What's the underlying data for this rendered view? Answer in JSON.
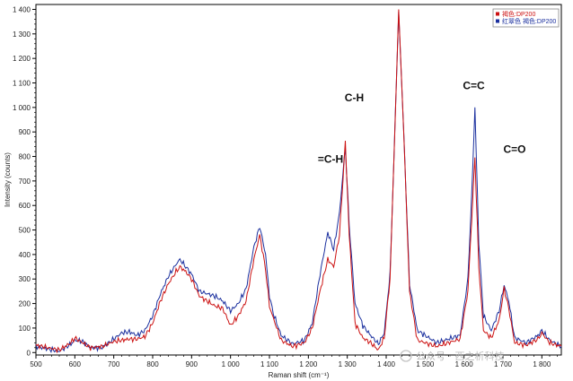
{
  "chart_data": {
    "type": "line",
    "xlabel": "Raman shift (cm⁻¹)",
    "ylabel": "Intensity (counts)",
    "xlim": [
      500,
      1850
    ],
    "ylim": [
      -10,
      1420
    ],
    "x_ticks": [
      500,
      600,
      700,
      800,
      900,
      1000,
      1100,
      1200,
      1300,
      1400,
      1500,
      1600,
      1700,
      1800
    ],
    "x_tick_labels": [
      "500",
      "600",
      "700",
      "800",
      "900",
      "1 000",
      "1 100",
      "1 200",
      "1 300",
      "1 400",
      "1 500",
      "1 600",
      "1 700",
      "1 800"
    ],
    "y_ticks": [
      0,
      100,
      200,
      300,
      400,
      500,
      600,
      700,
      800,
      900,
      1000,
      1100,
      1200,
      1300,
      1400
    ],
    "y_tick_labels": [
      "0",
      "100",
      "200",
      "300",
      "400",
      "500",
      "600",
      "700",
      "800",
      "900",
      "1 000",
      "1 100",
      "1 200",
      "1 300",
      "1 400"
    ],
    "grid": false,
    "legend_position": "top-right",
    "series": [
      {
        "name": "褐色:DP200",
        "color": "#cc1111",
        "points": [
          [
            500,
            30
          ],
          [
            530,
            20
          ],
          [
            560,
            10
          ],
          [
            590,
            40
          ],
          [
            600,
            60
          ],
          [
            620,
            40
          ],
          [
            640,
            20
          ],
          [
            670,
            25
          ],
          [
            700,
            45
          ],
          [
            720,
            50
          ],
          [
            740,
            55
          ],
          [
            760,
            55
          ],
          [
            780,
            65
          ],
          [
            800,
            120
          ],
          [
            820,
            210
          ],
          [
            840,
            280
          ],
          [
            860,
            330
          ],
          [
            870,
            350
          ],
          [
            885,
            330
          ],
          [
            900,
            300
          ],
          [
            920,
            230
          ],
          [
            940,
            210
          ],
          [
            960,
            190
          ],
          [
            980,
            180
          ],
          [
            1000,
            110
          ],
          [
            1020,
            150
          ],
          [
            1040,
            210
          ],
          [
            1060,
            380
          ],
          [
            1075,
            480
          ],
          [
            1090,
            340
          ],
          [
            1100,
            190
          ],
          [
            1110,
            140
          ],
          [
            1130,
            50
          ],
          [
            1160,
            25
          ],
          [
            1190,
            40
          ],
          [
            1210,
            100
          ],
          [
            1230,
            250
          ],
          [
            1250,
            380
          ],
          [
            1265,
            350
          ],
          [
            1280,
            480
          ],
          [
            1295,
            860
          ],
          [
            1305,
            480
          ],
          [
            1320,
            120
          ],
          [
            1340,
            60
          ],
          [
            1360,
            40
          ],
          [
            1380,
            10
          ],
          [
            1395,
            60
          ],
          [
            1410,
            300
          ],
          [
            1420,
            800
          ],
          [
            1432,
            1400
          ],
          [
            1445,
            900
          ],
          [
            1460,
            250
          ],
          [
            1480,
            50
          ],
          [
            1500,
            40
          ],
          [
            1530,
            25
          ],
          [
            1560,
            40
          ],
          [
            1590,
            55
          ],
          [
            1610,
            250
          ],
          [
            1620,
            550
          ],
          [
            1628,
            800
          ],
          [
            1638,
            350
          ],
          [
            1650,
            90
          ],
          [
            1670,
            60
          ],
          [
            1690,
            130
          ],
          [
            1703,
            260
          ],
          [
            1715,
            180
          ],
          [
            1730,
            40
          ],
          [
            1760,
            30
          ],
          [
            1790,
            55
          ],
          [
            1800,
            80
          ],
          [
            1820,
            40
          ],
          [
            1850,
            25
          ]
        ]
      },
      {
        "name": "红翠色 褐色:DP200",
        "color": "#1a2f9e",
        "points": [
          [
            500,
            25
          ],
          [
            530,
            15
          ],
          [
            560,
            5
          ],
          [
            590,
            35
          ],
          [
            600,
            50
          ],
          [
            620,
            45
          ],
          [
            640,
            20
          ],
          [
            670,
            20
          ],
          [
            700,
            55
          ],
          [
            720,
            80
          ],
          [
            740,
            85
          ],
          [
            760,
            70
          ],
          [
            780,
            90
          ],
          [
            800,
            150
          ],
          [
            820,
            240
          ],
          [
            840,
            310
          ],
          [
            860,
            360
          ],
          [
            870,
            380
          ],
          [
            885,
            350
          ],
          [
            900,
            320
          ],
          [
            920,
            250
          ],
          [
            940,
            240
          ],
          [
            960,
            230
          ],
          [
            980,
            210
          ],
          [
            1000,
            170
          ],
          [
            1020,
            200
          ],
          [
            1040,
            260
          ],
          [
            1060,
            430
          ],
          [
            1075,
            515
          ],
          [
            1090,
            400
          ],
          [
            1100,
            230
          ],
          [
            1110,
            160
          ],
          [
            1130,
            70
          ],
          [
            1160,
            35
          ],
          [
            1190,
            50
          ],
          [
            1210,
            120
          ],
          [
            1230,
            320
          ],
          [
            1250,
            490
          ],
          [
            1265,
            420
          ],
          [
            1280,
            570
          ],
          [
            1295,
            840
          ],
          [
            1305,
            520
          ],
          [
            1320,
            200
          ],
          [
            1340,
            110
          ],
          [
            1360,
            70
          ],
          [
            1380,
            35
          ],
          [
            1395,
            80
          ],
          [
            1410,
            320
          ],
          [
            1420,
            800
          ],
          [
            1432,
            1390
          ],
          [
            1445,
            900
          ],
          [
            1460,
            280
          ],
          [
            1480,
            90
          ],
          [
            1500,
            70
          ],
          [
            1530,
            40
          ],
          [
            1560,
            55
          ],
          [
            1590,
            70
          ],
          [
            1610,
            300
          ],
          [
            1620,
            650
          ],
          [
            1628,
            1000
          ],
          [
            1638,
            450
          ],
          [
            1650,
            150
          ],
          [
            1670,
            90
          ],
          [
            1690,
            170
          ],
          [
            1703,
            275
          ],
          [
            1715,
            210
          ],
          [
            1730,
            60
          ],
          [
            1760,
            40
          ],
          [
            1790,
            70
          ],
          [
            1800,
            90
          ],
          [
            1820,
            50
          ],
          [
            1850,
            25
          ]
        ]
      }
    ],
    "annotations": [
      {
        "text": "C-H",
        "x": 1318,
        "y": 1025
      },
      {
        "text": "=C-H",
        "x": 1257,
        "y": 775
      },
      {
        "text": "C=C",
        "x": 1625,
        "y": 1075
      },
      {
        "text": "C=O",
        "x": 1730,
        "y": 815
      }
    ]
  },
  "watermark": "公众号 · 西之析科技"
}
